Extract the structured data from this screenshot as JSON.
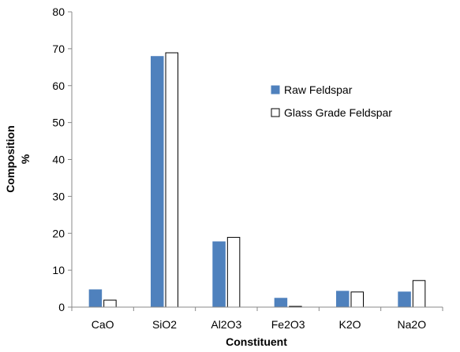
{
  "chart_data": {
    "type": "bar",
    "xlabel": "Constituent",
    "ylabel_line1": "Composition",
    "ylabel_line2": "%",
    "categories": [
      "CaO",
      "SiO2",
      "Al2O3",
      "Fe2O3",
      "K2O",
      "Na2O"
    ],
    "series": [
      {
        "name": "Raw Feldspar",
        "values": [
          4.7,
          67.9,
          17.7,
          2.4,
          4.3,
          4.1
        ],
        "color": "#4f81bd",
        "outline": "#4f81bd"
      },
      {
        "name": "Glass Grade Feldspar",
        "values": [
          1.9,
          68.9,
          18.9,
          0.2,
          4.1,
          7.2
        ],
        "color": "#ffffff",
        "outline": "#000000"
      }
    ],
    "ylim": [
      0,
      80
    ],
    "yticks": [
      0,
      10,
      20,
      30,
      40,
      50,
      60,
      70,
      80
    ],
    "grid": false,
    "legend_position": "right"
  }
}
